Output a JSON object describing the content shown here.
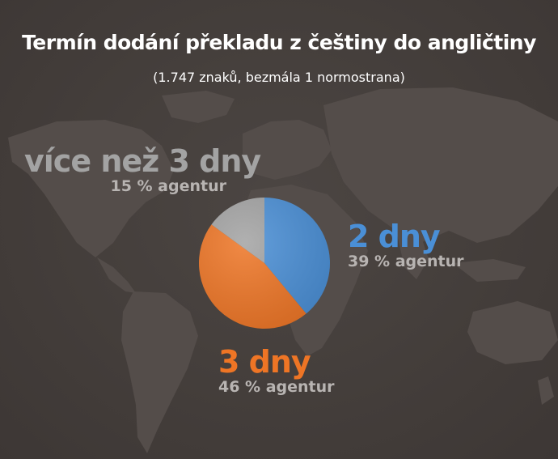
{
  "colors": {
    "background": "#453f3c",
    "map": "#544d4a",
    "blue": "#4a8fd6",
    "orange": "#ee7525",
    "gray": "#a3a3a3",
    "subtext": "#b8b4b2"
  },
  "title": "Termín dodání překladu z češtiny do angličtiny",
  "subtitle": "(1.747 znaků, bezmála 1 normostrana)",
  "chart_data": {
    "type": "pie",
    "slices": [
      {
        "label": "2 dny",
        "value": 39,
        "value_label": "39 % agentur",
        "color": "#4a8fd6"
      },
      {
        "label": "3 dny",
        "value": 46,
        "value_label": "46 % agentur",
        "color": "#ee7525"
      },
      {
        "label": "více než 3 dny",
        "value": 15,
        "value_label": "15 % agentur",
        "color": "#a3a3a3"
      }
    ]
  }
}
